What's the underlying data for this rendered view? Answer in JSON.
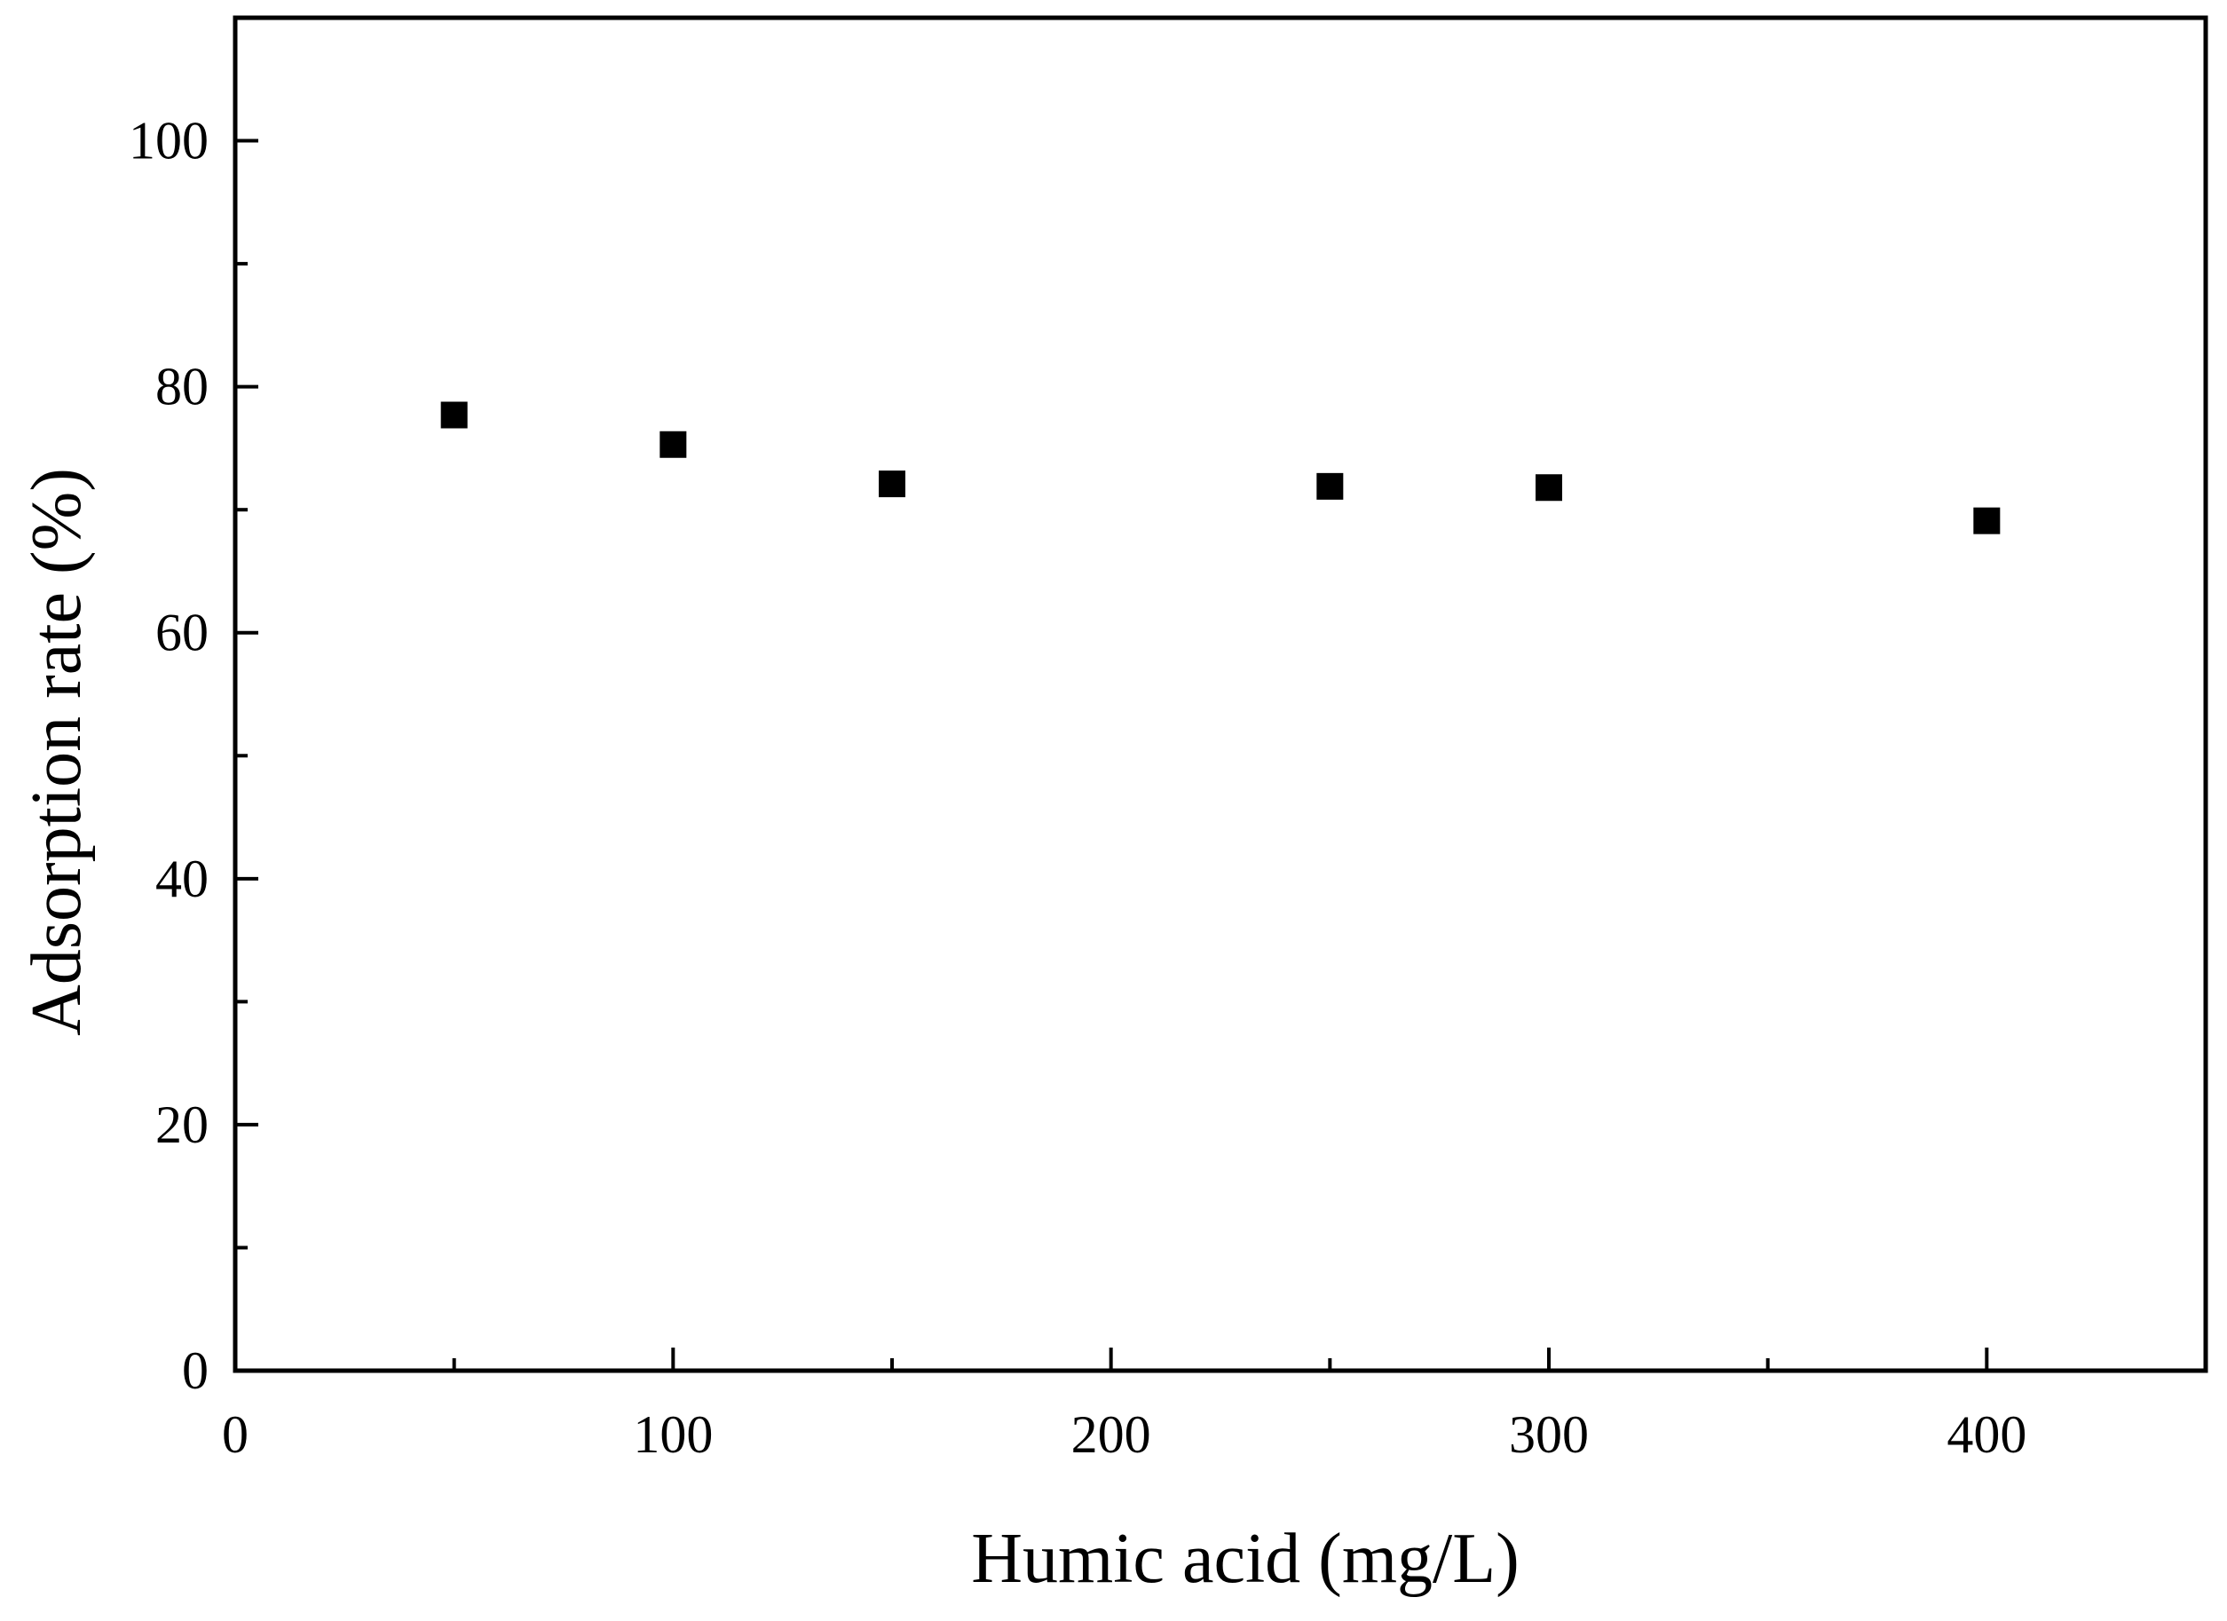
{
  "chart_data": {
    "type": "scatter",
    "title": "",
    "xlabel": "Humic acid (mg/L)",
    "ylabel": "Adsorption rate (%)",
    "xlim": [
      0,
      450
    ],
    "ylim": [
      0,
      110
    ],
    "x_ticks": [
      0,
      100,
      200,
      300,
      400
    ],
    "x_minor_ticks": [
      50,
      150,
      250,
      350
    ],
    "y_ticks": [
      0,
      20,
      40,
      60,
      80,
      100
    ],
    "y_minor_ticks": [
      10,
      30,
      50,
      70,
      90
    ],
    "grid": false,
    "marker": "square",
    "series": [
      {
        "x": [
          50,
          100,
          150,
          250,
          300,
          400
        ],
        "y": [
          77.7,
          75.3,
          72.1,
          71.9,
          71.8,
          69.1
        ]
      }
    ],
    "colors": {
      "axis": "#000000",
      "marker": "#000000",
      "background": "#ffffff"
    }
  }
}
